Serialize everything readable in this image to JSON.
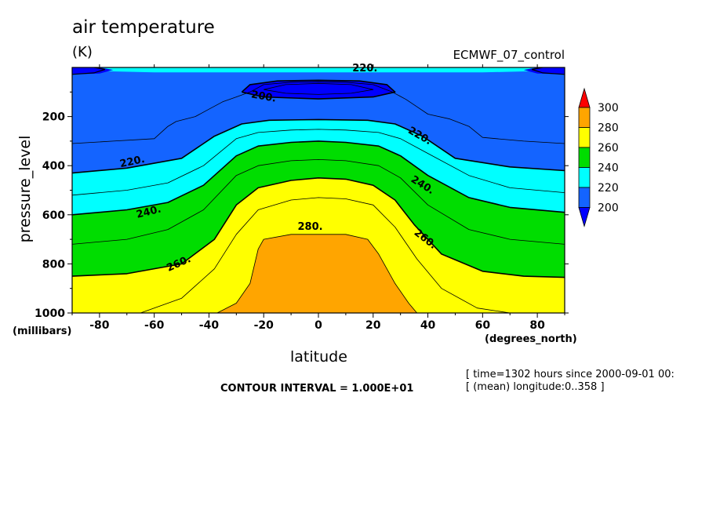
{
  "chart_data": {
    "type": "contour",
    "title": "air temperature",
    "units": "(K)",
    "dataset": "ECMWF_07_control",
    "xlabel": "latitude",
    "x_units": "(degrees_north)",
    "ylabel": "pressure_level",
    "y_units": "(millibars)",
    "xlim": [
      -90,
      90
    ],
    "ylim": [
      1000,
      0
    ],
    "x_ticks": [
      -80,
      -60,
      -40,
      -20,
      0,
      20,
      40,
      60,
      80
    ],
    "y_ticks": [
      200,
      400,
      600,
      800,
      1000
    ],
    "contour_interval_text": "CONTOUR INTERVAL = 1.000E+01",
    "info": [
      "[ time=1302 hours since 2000-09-01 00:",
      "[ (mean) longitude:0..358 ]"
    ],
    "colorbar": {
      "levels": [
        200,
        220,
        240,
        260,
        280,
        300
      ],
      "colors": [
        "#0000ff",
        "#1464ff",
        "#00ffff",
        "#00dd00",
        "#ffff00",
        "#ffa500",
        "#ff0000"
      ]
    },
    "fill_colors": {
      "c190": "#0000ff",
      "c200": "#1464ff",
      "c220": "#00ffff",
      "c240": "#00dd00",
      "c260": "#ffff00",
      "c280": "#ffa500"
    },
    "contours": [
      {
        "level": 280,
        "bold": false,
        "points": [
          [
            -37,
            1000
          ],
          [
            -30,
            960
          ],
          [
            -25,
            880
          ],
          [
            -22,
            740
          ],
          [
            -20,
            700
          ],
          [
            -10,
            680
          ],
          [
            0,
            680
          ],
          [
            10,
            680
          ],
          [
            18,
            700
          ],
          [
            22,
            760
          ],
          [
            28,
            880
          ],
          [
            33,
            960
          ],
          [
            36,
            1000
          ]
        ]
      },
      {
        "level": 270,
        "bold": false,
        "points": [
          [
            -65,
            1000
          ],
          [
            -50,
            940
          ],
          [
            -38,
            820
          ],
          [
            -30,
            680
          ],
          [
            -22,
            580
          ],
          [
            -10,
            540
          ],
          [
            0,
            530
          ],
          [
            10,
            535
          ],
          [
            20,
            560
          ],
          [
            28,
            650
          ],
          [
            36,
            780
          ],
          [
            45,
            900
          ],
          [
            58,
            980
          ],
          [
            70,
            1000
          ]
        ]
      },
      {
        "level": 260,
        "bold": true,
        "points": [
          [
            -90,
            850
          ],
          [
            -70,
            840
          ],
          [
            -50,
            800
          ],
          [
            -38,
            700
          ],
          [
            -30,
            560
          ],
          [
            -22,
            490
          ],
          [
            -10,
            460
          ],
          [
            0,
            450
          ],
          [
            10,
            455
          ],
          [
            20,
            480
          ],
          [
            28,
            540
          ],
          [
            35,
            640
          ],
          [
            45,
            760
          ],
          [
            60,
            830
          ],
          [
            75,
            850
          ],
          [
            90,
            855
          ]
        ]
      },
      {
        "level": 250,
        "bold": false,
        "points": [
          [
            -90,
            720
          ],
          [
            -70,
            700
          ],
          [
            -55,
            660
          ],
          [
            -42,
            580
          ],
          [
            -30,
            440
          ],
          [
            -22,
            400
          ],
          [
            -10,
            380
          ],
          [
            0,
            375
          ],
          [
            10,
            380
          ],
          [
            22,
            400
          ],
          [
            30,
            450
          ],
          [
            40,
            560
          ],
          [
            55,
            660
          ],
          [
            70,
            700
          ],
          [
            90,
            720
          ]
        ]
      },
      {
        "level": 240,
        "bold": true,
        "points": [
          [
            -90,
            600
          ],
          [
            -70,
            580
          ],
          [
            -55,
            550
          ],
          [
            -42,
            480
          ],
          [
            -30,
            360
          ],
          [
            -22,
            320
          ],
          [
            -10,
            305
          ],
          [
            0,
            300
          ],
          [
            10,
            305
          ],
          [
            22,
            320
          ],
          [
            30,
            360
          ],
          [
            40,
            440
          ],
          [
            55,
            530
          ],
          [
            70,
            570
          ],
          [
            90,
            590
          ]
        ]
      },
      {
        "level": 230,
        "bold": false,
        "points": [
          [
            -90,
            520
          ],
          [
            -70,
            500
          ],
          [
            -55,
            470
          ],
          [
            -42,
            400
          ],
          [
            -30,
            290
          ],
          [
            -22,
            265
          ],
          [
            -10,
            255
          ],
          [
            0,
            252
          ],
          [
            10,
            255
          ],
          [
            22,
            265
          ],
          [
            30,
            290
          ],
          [
            40,
            350
          ],
          [
            55,
            440
          ],
          [
            70,
            490
          ],
          [
            90,
            510
          ]
        ]
      },
      {
        "level": 220,
        "bold": true,
        "points": [
          [
            -90,
            430
          ],
          [
            -70,
            410
          ],
          [
            -50,
            370
          ],
          [
            -38,
            280
          ],
          [
            -28,
            230
          ],
          [
            -18,
            215
          ],
          [
            0,
            212
          ],
          [
            18,
            215
          ],
          [
            28,
            230
          ],
          [
            38,
            280
          ],
          [
            50,
            370
          ],
          [
            70,
            405
          ],
          [
            90,
            420
          ]
        ]
      },
      {
        "level": 210,
        "bold": false,
        "points": [
          [
            -90,
            310
          ],
          [
            -75,
            300
          ],
          [
            -60,
            290
          ],
          [
            -55,
            240
          ],
          [
            -52,
            220
          ],
          [
            -45,
            200
          ],
          [
            -40,
            170
          ],
          [
            -35,
            140
          ],
          [
            -30,
            120
          ],
          [
            -25,
            100
          ],
          [
            -20,
            70
          ],
          [
            -10,
            60
          ],
          [
            0,
            58
          ],
          [
            10,
            60
          ],
          [
            20,
            70
          ],
          [
            27,
            100
          ],
          [
            32,
            130
          ],
          [
            36,
            160
          ],
          [
            40,
            190
          ],
          [
            48,
            210
          ],
          [
            55,
            240
          ],
          [
            60,
            285
          ],
          [
            75,
            300
          ],
          [
            90,
            310
          ]
        ]
      },
      {
        "level": 200,
        "bold": true,
        "points": [
          [
            -28,
            100
          ],
          [
            -25,
            70
          ],
          [
            -15,
            55
          ],
          [
            0,
            52
          ],
          [
            15,
            55
          ],
          [
            25,
            70
          ],
          [
            28,
            100
          ],
          [
            20,
            120
          ],
          [
            0,
            128
          ],
          [
            -20,
            120
          ],
          [
            -28,
            100
          ]
        ]
      },
      {
        "level": 190,
        "bold": false,
        "points": [
          [
            -20,
            90
          ],
          [
            -12,
            70
          ],
          [
            0,
            65
          ],
          [
            12,
            70
          ],
          [
            20,
            90
          ],
          [
            12,
            105
          ],
          [
            0,
            110
          ],
          [
            -12,
            105
          ],
          [
            -20,
            90
          ]
        ]
      }
    ],
    "contour_labels": [
      {
        "text": "220.",
        "lat": 17,
        "p": 5,
        "angle": 0
      },
      {
        "text": "200.",
        "lat": -20,
        "p": 120,
        "angle": 10
      },
      {
        "text": "220.",
        "lat": -68,
        "p": 385,
        "angle": -12
      },
      {
        "text": "220.",
        "lat": 37,
        "p": 280,
        "angle": 30
      },
      {
        "text": "240.",
        "lat": -62,
        "p": 590,
        "angle": -14
      },
      {
        "text": "240.",
        "lat": 38,
        "p": 480,
        "angle": 32
      },
      {
        "text": "260.",
        "lat": -51,
        "p": 800,
        "angle": -24
      },
      {
        "text": "260.",
        "lat": 39,
        "p": 700,
        "angle": 38
      },
      {
        "text": "280.",
        "lat": -3,
        "p": 650,
        "angle": 0
      }
    ]
  }
}
